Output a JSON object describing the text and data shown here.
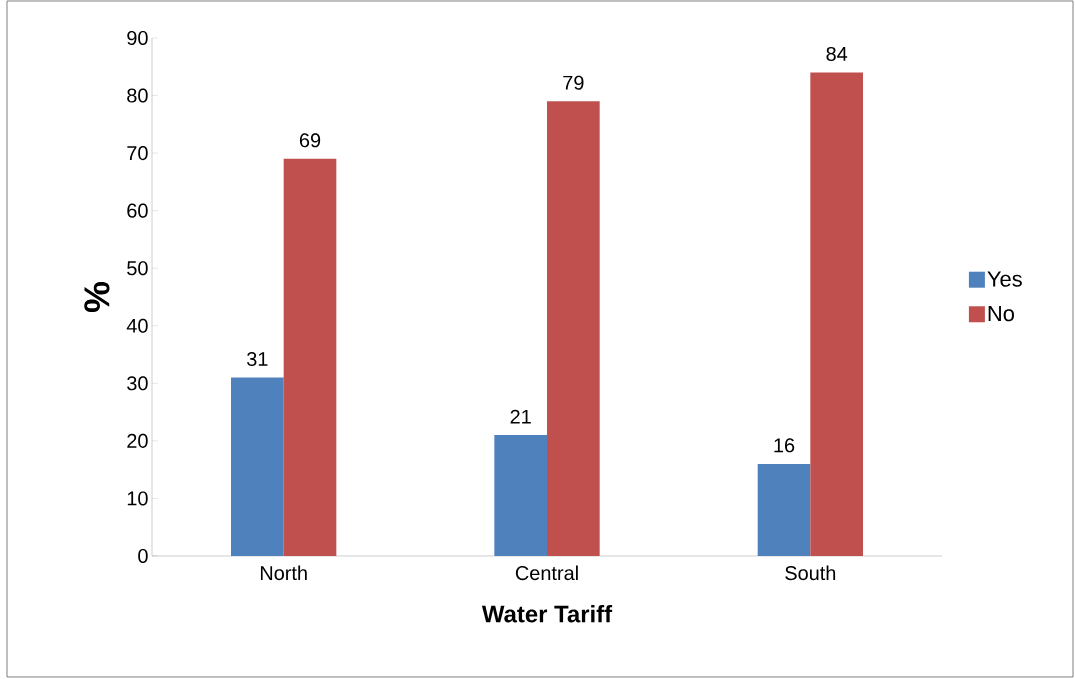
{
  "chart_data": {
    "type": "bar",
    "xlabel": "Water Tariff",
    "ylabel": "%",
    "categories": [
      "North",
      "Central",
      "South"
    ],
    "series": [
      {
        "name": "Yes",
        "color": "#4f81bd",
        "values": [
          31,
          21,
          16
        ]
      },
      {
        "name": "No",
        "color": "#c0504d",
        "values": [
          69,
          79,
          84
        ]
      }
    ],
    "ylim": [
      0,
      90
    ],
    "yticks": [
      0,
      10,
      20,
      30,
      40,
      50,
      60,
      70,
      80,
      90
    ],
    "legend": "right",
    "data_labels": true
  }
}
